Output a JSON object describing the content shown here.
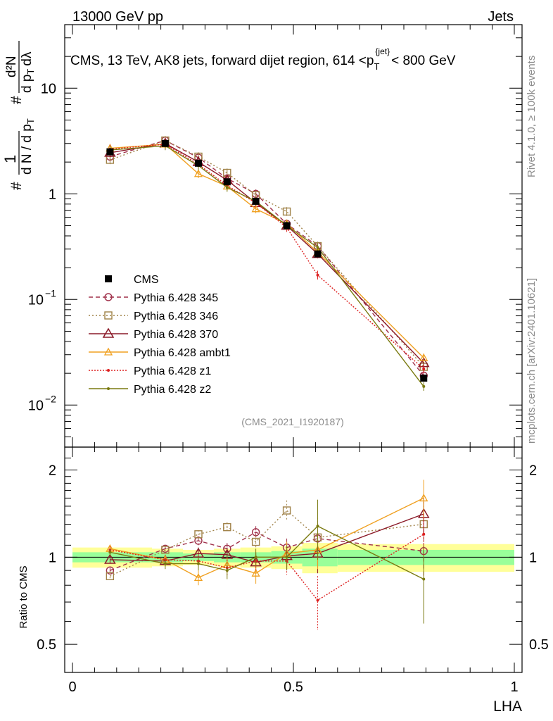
{
  "header": {
    "energy_label": "13000 GeV pp",
    "category_label": "Jets"
  },
  "side_labels": {
    "rivet": "Rivet 4.1.0, ≥ 100k events",
    "mcplots": "mcplots.cern.ch [arXiv:2401.10621]"
  },
  "chart_data": {
    "type": "line",
    "title": "CMS, 13 TeV, AK8 jets, forward dijet region, 614 < p_T^{jet} < 800 GeV",
    "title_parts": {
      "main": "CMS, 13 TeV, AK8 jets, forward dijet region, 614 <p",
      "sub": "T",
      "sup": "{jet}",
      "tail": "< 800 GeV"
    },
    "analysis_id": "(CMS_2021_I1920187)",
    "ylabel": "1/N dN/dp_T / (d²N/dp_T dλ)",
    "ylabel_parts": {
      "sym": "#",
      "one": "1",
      "dN": "d N / d p",
      "dN_sub": "T",
      "d2N": "d²N",
      "dpt_dl": "d p",
      "dpt_dl_sub": "T",
      "dl": "dλ"
    },
    "xlabel": "LHA",
    "ratio_ylabel": "Ratio to CMS",
    "xlim": [
      0,
      1
    ],
    "ylim": [
      0.004,
      40
    ],
    "ratio_ylim": [
      0.4,
      2.4
    ],
    "x_ticks": [
      {
        "v": 0,
        "label": "0"
      },
      {
        "v": 0.5,
        "label": "0.5"
      },
      {
        "v": 1,
        "label": "1"
      }
    ],
    "y_ticks": [
      {
        "v": 0.01,
        "base": "10",
        "exp": "−2"
      },
      {
        "v": 0.1,
        "base": "10",
        "exp": "−1"
      },
      {
        "v": 1,
        "base": "1",
        "exp": ""
      },
      {
        "v": 10,
        "base": "10",
        "exp": ""
      }
    ],
    "ratio_ticks": [
      {
        "v": 0.5,
        "label": "0.5"
      },
      {
        "v": 1,
        "label": "1"
      },
      {
        "v": 2,
        "label": "2"
      }
    ],
    "bin_edges": [
      0,
      0.18,
      0.25,
      0.32,
      0.38,
      0.45,
      0.52,
      0.6,
      1.0
    ],
    "x": [
      0.085,
      0.21,
      0.285,
      0.35,
      0.415,
      0.485,
      0.555,
      0.795
    ],
    "data": {
      "name": "CMS",
      "values": [
        2.5,
        3.0,
        1.95,
        1.3,
        0.85,
        0.5,
        0.27,
        0.018
      ],
      "ratio_band_inner": [
        0.04,
        0.04,
        0.03,
        0.04,
        0.04,
        0.05,
        0.07,
        0.06
      ],
      "ratio_band_outer": [
        0.08,
        0.07,
        0.06,
        0.07,
        0.08,
        0.09,
        0.12,
        0.11
      ]
    },
    "series": [
      {
        "name": "Pythia 6.428 345",
        "color": "#a0304a",
        "dash": "6,4",
        "marker": "circle",
        "values": [
          2.25,
          3.2,
          2.2,
          1.4,
          1.0,
          0.52,
          0.32,
          0.019
        ],
        "ratio": [
          0.9,
          1.07,
          1.14,
          1.07,
          1.22,
          1.08,
          1.16,
          1.05
        ],
        "ratio_err": [
          0.02,
          0.03,
          0.04,
          0.05,
          0.06,
          0.08,
          0.15,
          0.2
        ]
      },
      {
        "name": "Pythia 6.428 346",
        "color": "#a08248",
        "dash": "2,3",
        "marker": "square",
        "values": [
          2.1,
          3.2,
          2.25,
          1.58,
          0.97,
          0.68,
          0.32,
          0.023
        ],
        "ratio": [
          0.86,
          1.06,
          1.2,
          1.27,
          1.13,
          1.45,
          1.17,
          1.3
        ],
        "ratio_err": [
          0.02,
          0.03,
          0.04,
          0.05,
          0.06,
          0.12,
          0.2,
          0.25
        ]
      },
      {
        "name": "Pythia 6.428 370",
        "color": "#8b1a28",
        "dash": "",
        "marker": "triangle",
        "values": [
          2.45,
          3.0,
          2.0,
          1.35,
          0.82,
          0.5,
          0.27,
          0.025
        ],
        "ratio": [
          0.98,
          0.97,
          1.03,
          1.02,
          0.96,
          1.01,
          1.03,
          1.41
        ],
        "ratio_err": [
          0.03,
          0.04,
          0.05,
          0.06,
          0.07,
          0.1,
          0.15,
          0.2
        ]
      },
      {
        "name": "Pythia 6.428 ambt1",
        "color": "#f0a020",
        "dash": "",
        "marker": "tri-small",
        "values": [
          2.7,
          2.95,
          1.55,
          1.18,
          0.72,
          0.52,
          0.28,
          0.028
        ],
        "ratio": [
          1.07,
          0.98,
          0.85,
          0.94,
          0.88,
          1.03,
          1.06,
          1.6
        ],
        "ratio_err": [
          0.03,
          0.04,
          0.05,
          0.06,
          0.07,
          0.1,
          0.15,
          0.25
        ]
      },
      {
        "name": "Pythia 6.428 z1",
        "color": "#dd2020",
        "dash": "2,2",
        "marker": "dot",
        "values": [
          2.65,
          2.95,
          1.9,
          1.2,
          0.82,
          0.48,
          0.17,
          0.022
        ],
        "ratio": [
          1.06,
          0.98,
          0.97,
          0.92,
          0.97,
          0.97,
          0.71,
          1.2
        ],
        "ratio_err": [
          0.03,
          0.04,
          0.05,
          0.06,
          0.07,
          0.1,
          0.15,
          0.2
        ]
      },
      {
        "name": "Pythia 6.428 z2",
        "color": "#7a7a10",
        "dash": "",
        "marker": "dot",
        "values": [
          2.6,
          2.85,
          1.85,
          1.15,
          0.85,
          0.5,
          0.31,
          0.015
        ],
        "ratio": [
          1.04,
          0.95,
          0.95,
          0.9,
          1.0,
          1.0,
          1.28,
          0.84
        ],
        "ratio_err": [
          0.03,
          0.04,
          0.05,
          0.06,
          0.07,
          0.1,
          0.3,
          0.25
        ]
      }
    ]
  }
}
